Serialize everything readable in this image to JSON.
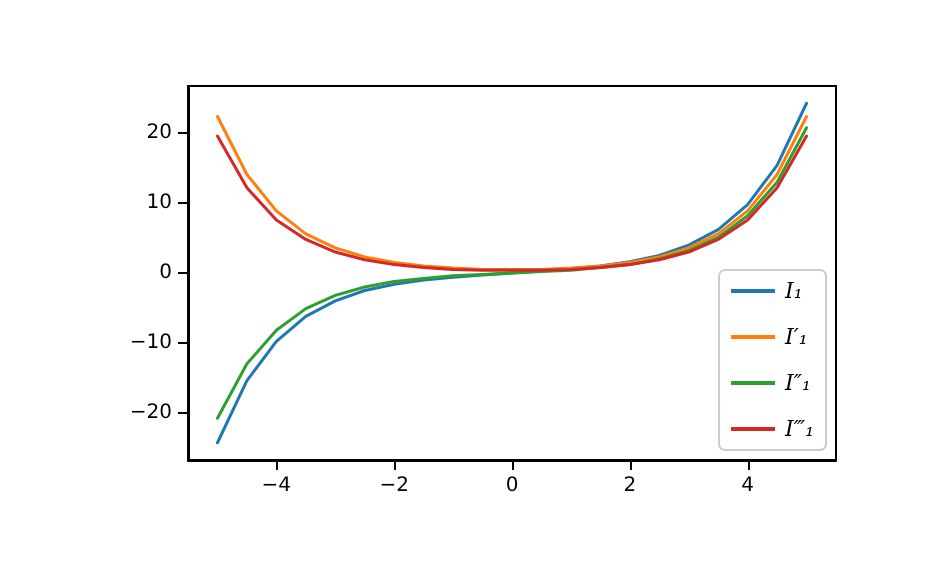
{
  "chart_data": {
    "type": "line",
    "x": [
      -5,
      -4.5,
      -4,
      -3.5,
      -3,
      -2.5,
      -2,
      -1.5,
      -1,
      -0.5,
      0,
      0.5,
      1,
      1.5,
      2,
      2.5,
      3,
      3.5,
      4,
      4.5,
      5
    ],
    "series": [
      {
        "name": "I₁",
        "color": "#1f77b4",
        "values": [
          -24.3,
          -15.4,
          -9.8,
          -6.2,
          -4,
          -2.5,
          -1.6,
          -1,
          -0.6,
          -0.3,
          0,
          0.3,
          0.6,
          1,
          1.6,
          2.5,
          4,
          6.2,
          9.8,
          15.4,
          24.3
        ]
      },
      {
        "name": "I′₁",
        "color": "#ff7f0e",
        "values": [
          22.4,
          14.1,
          8.9,
          5.6,
          3.6,
          2.3,
          1.5,
          1,
          0.7,
          0.5,
          0.5,
          0.5,
          0.7,
          1,
          1.5,
          2.3,
          3.6,
          5.6,
          8.9,
          14.1,
          22.4
        ]
      },
      {
        "name": "I″₁",
        "color": "#2ca02c",
        "values": [
          -20.8,
          -13,
          -8.2,
          -5.1,
          -3.2,
          -2,
          -1.2,
          -0.8,
          -0.4,
          -0.2,
          0,
          0.2,
          0.4,
          0.8,
          1.2,
          2,
          3.2,
          5.1,
          8.2,
          13,
          20.8
        ]
      },
      {
        "name": "I‴₁",
        "color": "#d62728",
        "values": [
          19.6,
          12.2,
          7.6,
          4.8,
          3,
          1.9,
          1.2,
          0.8,
          0.5,
          0.4,
          0.4,
          0.4,
          0.5,
          0.8,
          1.2,
          1.9,
          3,
          4.8,
          7.6,
          12.2,
          19.6
        ]
      }
    ],
    "xlim": [
      -5.5,
      5.5
    ],
    "xticks": [
      -4,
      -2,
      0,
      2,
      4
    ],
    "ylim": [
      -26.77,
      26.77
    ],
    "yticks": [
      -20,
      -10,
      0,
      10,
      20
    ],
    "grid": false,
    "legend": "bottom right",
    "marker": "none",
    "line_style": "solid"
  }
}
